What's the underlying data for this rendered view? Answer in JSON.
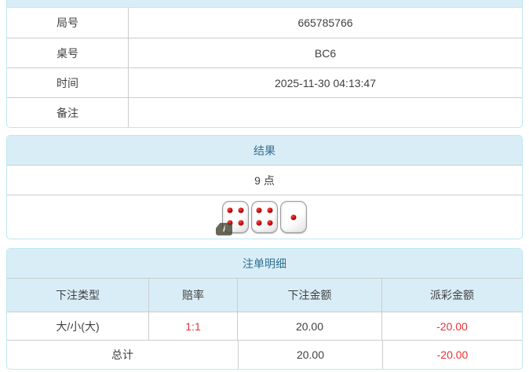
{
  "colors": {
    "panel_border": "#bce8f1",
    "heading_bg": "#d9edf7",
    "heading_text": "#31708f",
    "row_border": "#cccccc",
    "text": "#404040",
    "negative": "#e63333",
    "page_bg": "#ffffff"
  },
  "game_info": {
    "rows": [
      {
        "label": "局号",
        "value": "665785766"
      },
      {
        "label": "桌号",
        "value": "BC6"
      },
      {
        "label": "时间",
        "value": "2025-11-30 04:13:47"
      },
      {
        "label": "备注",
        "value": ""
      }
    ]
  },
  "result_panel": {
    "title": "结果",
    "points": "9 点",
    "dice": [
      4,
      4,
      1
    ],
    "info_icon_label": "i"
  },
  "bets_panel": {
    "title": "注单明细",
    "columns": [
      "下注类型",
      "赔率",
      "下注金额",
      "派彩金额"
    ],
    "rows": [
      {
        "type": "大/小(大)",
        "odds": "1:1",
        "amount": "20.00",
        "payout": "-20.00"
      }
    ],
    "total": {
      "label": "总计",
      "amount": "20.00",
      "payout": "-20.00"
    }
  }
}
